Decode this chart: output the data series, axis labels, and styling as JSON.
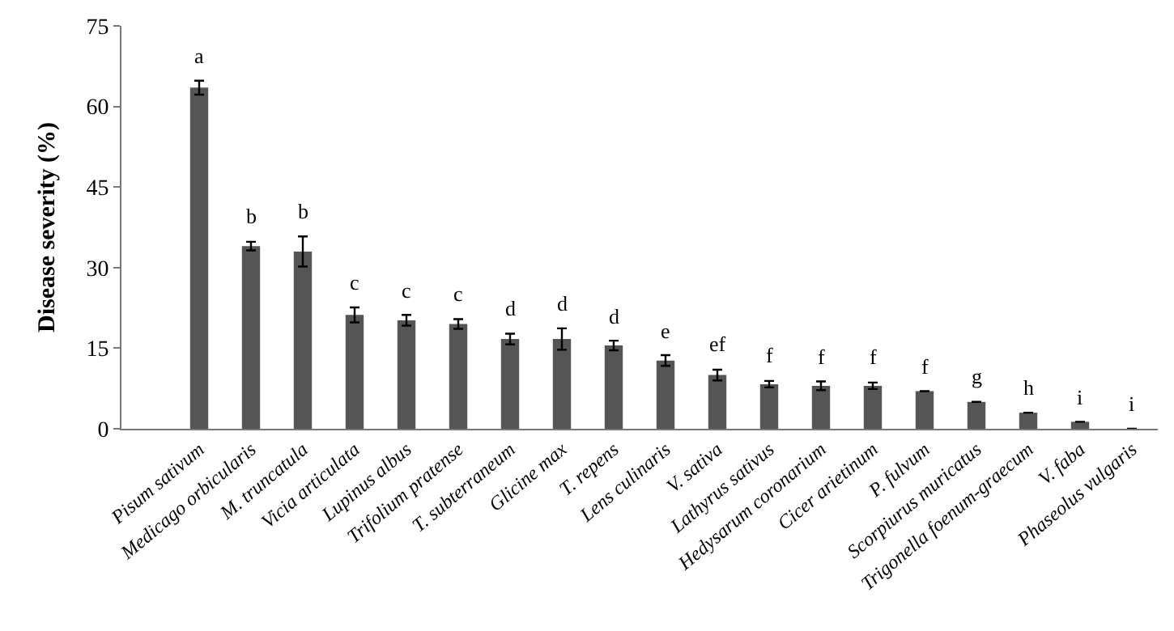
{
  "chart_data": {
    "type": "bar",
    "ylabel": "Disease severity (%)",
    "categories": [
      "Pisum sativum",
      "Medicago orbicularis",
      "M. truncatula",
      "Vicia articulata",
      "Lupinus albus",
      "Trifolium pratense",
      "T. subterraneum",
      "Glicine max",
      "T. repens",
      "Lens culinaris",
      "V. sativa",
      "Lathyrus sativus",
      "Hedysarum coronarium",
      "Cicer arietinum",
      "P. fulvum",
      "Scorpiurus muricatus",
      "Trigonella foenum-graecum",
      "V. faba",
      "Phaseolus vulgaris"
    ],
    "values": [
      63.5,
      34,
      33,
      21.2,
      20.2,
      19.5,
      16.7,
      16.7,
      15.5,
      12.7,
      10,
      8.3,
      8,
      8,
      7,
      5,
      3,
      1.3,
      0
    ],
    "errors": [
      1.3,
      0.8,
      2.8,
      1.4,
      1,
      0.9,
      1,
      2,
      0.9,
      1,
      1,
      0.6,
      0.8,
      0.6,
      null,
      null,
      null,
      null,
      null
    ],
    "value_labels": [
      "a",
      "b",
      "b",
      "c",
      "c",
      "c",
      "d",
      "d",
      "d",
      "e",
      "ef",
      "f",
      "f",
      "f",
      "f",
      "g",
      "h",
      "i",
      "i"
    ],
    "color": "#555555",
    "ylim": [
      0,
      75
    ],
    "yticks": [
      0,
      15,
      30,
      45,
      60,
      75
    ]
  }
}
